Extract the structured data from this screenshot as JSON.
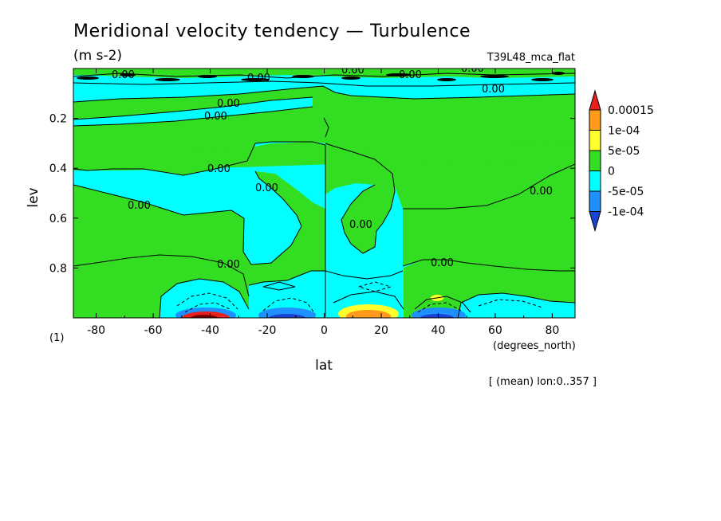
{
  "chart_data": {
    "type": "heatmap",
    "title": "Meridional velocity tendency — Turbulence",
    "units": "(m s-2)",
    "experiment": "T39L48_mca_flat",
    "xlabel": "lat",
    "xunits": "(degrees_north)",
    "ylabel": "lev",
    "yunits": "(1)",
    "footnote": "[ (mean) lon:0..357 ]",
    "xlim": [
      -88,
      88
    ],
    "ylim": [
      1.0,
      0.0
    ],
    "xticks": [
      -80,
      -60,
      -40,
      -20,
      0,
      20,
      40,
      60,
      80
    ],
    "xtick_labels": [
      "-80",
      "-60",
      "-40",
      "-20",
      "0",
      "20",
      "40",
      "60",
      "80"
    ],
    "yticks": [
      0.2,
      0.4,
      0.6,
      0.8
    ],
    "ytick_labels": [
      "0.2",
      "0.4",
      "0.6",
      "0.8"
    ],
    "contour_label": "0.00",
    "colorbar": {
      "labels": [
        "0.00015",
        "1e-04",
        "5e-05",
        "0",
        "-5e-05",
        "-1e-04"
      ],
      "levels": [
        0.00015,
        0.0001,
        5e-05,
        0,
        -5e-05,
        -0.0001
      ],
      "colors": [
        "#e8211c",
        "#ff9a1a",
        "#ffff2e",
        "#33dd22",
        "#00ffff",
        "#1e90ff",
        "#1a43d6"
      ]
    }
  }
}
